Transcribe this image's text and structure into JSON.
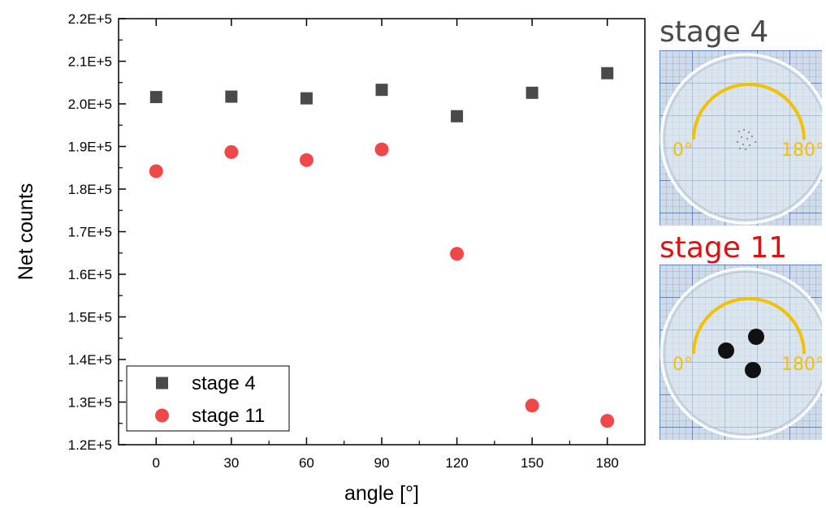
{
  "chart_data": {
    "type": "scatter",
    "title": "",
    "xlabel": "angle [°]",
    "ylabel": "Net counts",
    "xlim": [
      -15,
      195
    ],
    "ylim": [
      120000,
      220000
    ],
    "xticks": [
      0,
      30,
      60,
      90,
      120,
      150,
      180
    ],
    "xtick_labels": [
      "0",
      "30",
      "60",
      "90",
      "120",
      "150",
      "180"
    ],
    "yticks": [
      120000,
      130000,
      140000,
      150000,
      160000,
      170000,
      180000,
      190000,
      200000,
      210000,
      220000
    ],
    "ytick_labels": [
      "1.2E+5",
      "1.3E+5",
      "1.4E+5",
      "1.5E+5",
      "1.6E+5",
      "1.7E+5",
      "1.8E+5",
      "1.9E+5",
      "2.0E+5",
      "2.1E+5",
      "2.2E+5"
    ],
    "grid": false,
    "legend_position": "bottom-left",
    "series": [
      {
        "name": "stage 4",
        "marker": "square",
        "color": "#4a4a4a",
        "x": [
          0,
          30,
          60,
          90,
          120,
          150,
          180
        ],
        "y": [
          201600,
          201700,
          201300,
          203300,
          197100,
          202600,
          207200
        ]
      },
      {
        "name": "stage 11",
        "marker": "circle",
        "color": "#f04848",
        "x": [
          0,
          30,
          60,
          90,
          120,
          150,
          180
        ],
        "y": [
          184200,
          188700,
          186800,
          189300,
          164800,
          129200,
          125600
        ]
      }
    ]
  },
  "panels": [
    {
      "title": "stage 4",
      "title_color": "#4a4a4a",
      "angle_start": "0°",
      "angle_end": "180°",
      "label_color": "#f2c200"
    },
    {
      "title": "stage 11",
      "title_color": "#e01010",
      "angle_start": "0°",
      "angle_end": "180°",
      "label_color": "#f2c200"
    }
  ]
}
